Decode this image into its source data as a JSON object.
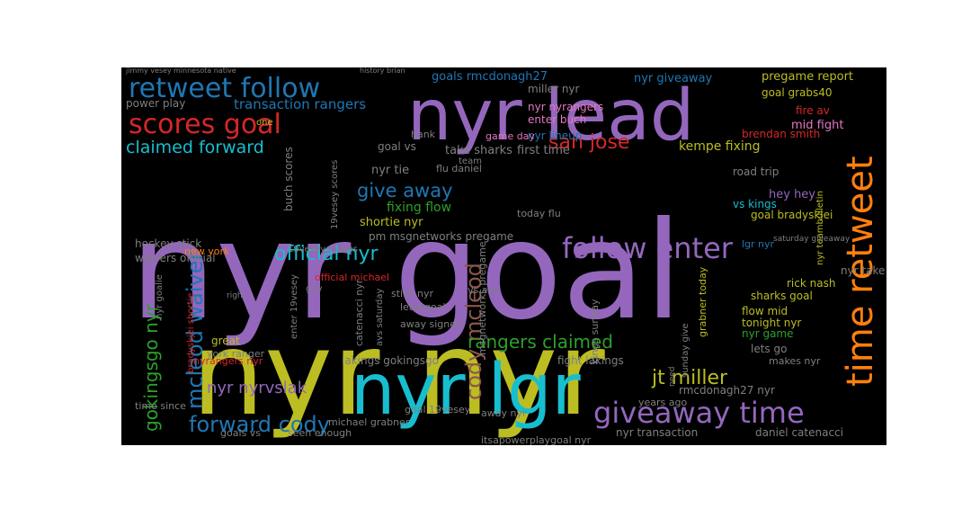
{
  "palette": {
    "background": "#000000",
    "purple": "#9467bd",
    "olive": "#bcbd22",
    "cyan": "#17becf",
    "blue": "#1f77b4",
    "red": "#d62728",
    "green": "#2ca02c",
    "orange": "#ff7f0e",
    "brown": "#8c564b",
    "pink": "#e377c2",
    "gray": "#7f7f7f"
  },
  "words": [
    {
      "text": "nyr goal",
      "color": "purple"
    },
    {
      "text": "nyr nyr",
      "color": "olive"
    },
    {
      "text": "nyr lead",
      "color": "purple"
    },
    {
      "text": "nyr lgr",
      "color": "cyan"
    },
    {
      "text": "retweet follow",
      "color": "blue"
    },
    {
      "text": "scores goal",
      "color": "red"
    },
    {
      "text": "time retweet",
      "color": "orange"
    },
    {
      "text": "follow enter",
      "color": "purple"
    },
    {
      "text": "giveaway time",
      "color": "purple"
    },
    {
      "text": "cody mcleod",
      "color": "brown"
    },
    {
      "text": "mcleod waiver",
      "color": "blue"
    },
    {
      "text": "gokingsgo nyr",
      "color": "green"
    },
    {
      "text": "forward cody",
      "color": "blue"
    },
    {
      "text": "official nyr",
      "color": "cyan"
    },
    {
      "text": "claimed forward",
      "color": "cyan"
    },
    {
      "text": "give away",
      "color": "blue"
    },
    {
      "text": "san jose",
      "color": "red"
    },
    {
      "text": "jt miller",
      "color": "olive"
    },
    {
      "text": "rangers claimed",
      "color": "green"
    },
    {
      "text": "nyr nyrvslak",
      "color": "purple"
    },
    {
      "text": "transaction rangers",
      "color": "blue"
    },
    {
      "text": "goals rmcdonagh27",
      "color": "blue"
    },
    {
      "text": "nyr giveaway",
      "color": "blue"
    },
    {
      "text": "pregame report",
      "color": "olive"
    },
    {
      "text": "miller nyr",
      "color": "gray"
    },
    {
      "text": "goal grabs40",
      "color": "olive"
    },
    {
      "text": "fire av",
      "color": "red"
    },
    {
      "text": "mid fight",
      "color": "pink"
    },
    {
      "text": "nyr nyrangers",
      "color": "pink"
    },
    {
      "text": "enter buch",
      "color": "pink"
    },
    {
      "text": "nyr lineup",
      "color": "blue"
    },
    {
      "text": "brendan smith",
      "color": "red"
    },
    {
      "text": "kempe fixing",
      "color": "olive"
    },
    {
      "text": "goal vs",
      "color": "gray"
    },
    {
      "text": "take sharks",
      "color": "gray"
    },
    {
      "text": "first time",
      "color": "gray"
    },
    {
      "text": "game day",
      "color": "pink"
    },
    {
      "text": "hank",
      "color": "gray"
    },
    {
      "text": "nyr tie",
      "color": "gray"
    },
    {
      "text": "flu daniel",
      "color": "gray"
    },
    {
      "text": "team",
      "color": "gray"
    },
    {
      "text": "power play",
      "color": "gray"
    },
    {
      "text": "one",
      "color": "olive"
    },
    {
      "text": "fixing flow",
      "color": "green"
    },
    {
      "text": "shortie nyr",
      "color": "olive"
    },
    {
      "text": "pm msgnetworks pregame",
      "color": "gray"
    },
    {
      "text": "buch scores",
      "color": "gray"
    },
    {
      "text": "19vesey scores",
      "color": "gray"
    },
    {
      "text": "19vesey makes",
      "color": "gray"
    },
    {
      "text": "hockey stick",
      "color": "gray"
    },
    {
      "text": "waivers official",
      "color": "gray"
    },
    {
      "text": "new york",
      "color": "orange"
    },
    {
      "text": "road trip",
      "color": "gray"
    },
    {
      "text": "vs kings",
      "color": "cyan"
    },
    {
      "text": "hey hey",
      "color": "purple"
    },
    {
      "text": "goal bradyskjei",
      "color": "olive"
    },
    {
      "text": "nyr teambulletin",
      "color": "olive"
    },
    {
      "text": "lgr nyr",
      "color": "blue"
    },
    {
      "text": "today flu",
      "color": "gray"
    },
    {
      "text": "nyr take",
      "color": "gray"
    },
    {
      "text": "rick nash",
      "color": "olive"
    },
    {
      "text": "sharks goal",
      "color": "olive"
    },
    {
      "text": "flow mid",
      "color": "olive"
    },
    {
      "text": "tonight nyr",
      "color": "olive"
    },
    {
      "text": "nyr game",
      "color": "green"
    },
    {
      "text": "lets go",
      "color": "gray"
    },
    {
      "text": "makes nyr",
      "color": "gray"
    },
    {
      "text": "rmcdonagh27 nyr",
      "color": "gray"
    },
    {
      "text": "grabner today",
      "color": "olive"
    },
    {
      "text": "official michael",
      "color": "red"
    },
    {
      "text": "stick nyr",
      "color": "gray"
    },
    {
      "text": "vs avs",
      "color": "gray"
    },
    {
      "text": "lead goal",
      "color": "gray"
    },
    {
      "text": "away signed",
      "color": "gray"
    },
    {
      "text": "lakings gokingsgo",
      "color": "gray"
    },
    {
      "text": "fight lakings",
      "color": "gray"
    },
    {
      "text": "kings sunday",
      "color": "gray"
    },
    {
      "text": "sunday give",
      "color": "gray"
    },
    {
      "text": "msgnetworks pregame",
      "color": "gray"
    },
    {
      "text": "catenacci nyr",
      "color": "gray"
    },
    {
      "text": "enter 19vesey",
      "color": "gray"
    },
    {
      "text": "avs saturday",
      "color": "gray"
    },
    {
      "text": "york ranger",
      "color": "gray"
    },
    {
      "text": "nyrangers nyr",
      "color": "red"
    },
    {
      "text": "bradyskjei shortie",
      "color": "red"
    },
    {
      "text": "nyr goalie",
      "color": "gray"
    },
    {
      "text": "great",
      "color": "olive"
    },
    {
      "text": "time since",
      "color": "gray"
    },
    {
      "text": "goals vs",
      "color": "gray"
    },
    {
      "text": "seen enough",
      "color": "gray"
    },
    {
      "text": "michael grabner",
      "color": "gray"
    },
    {
      "text": "goal 19vesey",
      "color": "gray"
    },
    {
      "text": "away nyr",
      "color": "gray"
    },
    {
      "text": "itsapowerplaygoal nyr",
      "color": "gray"
    },
    {
      "text": "nyr transaction",
      "color": "gray"
    },
    {
      "text": "daniel catenacci",
      "color": "gray"
    },
    {
      "text": "years ago",
      "color": "gray"
    },
    {
      "text": "need",
      "color": "gray"
    },
    {
      "text": "saturday giveaway",
      "color": "gray"
    },
    {
      "text": "guy",
      "color": "gray"
    },
    {
      "text": "right",
      "color": "gray"
    },
    {
      "text": "jimmy vesey",
      "color": "gray"
    },
    {
      "text": "minnesota native",
      "color": "gray"
    },
    {
      "text": "history brian",
      "color": "gray"
    }
  ]
}
